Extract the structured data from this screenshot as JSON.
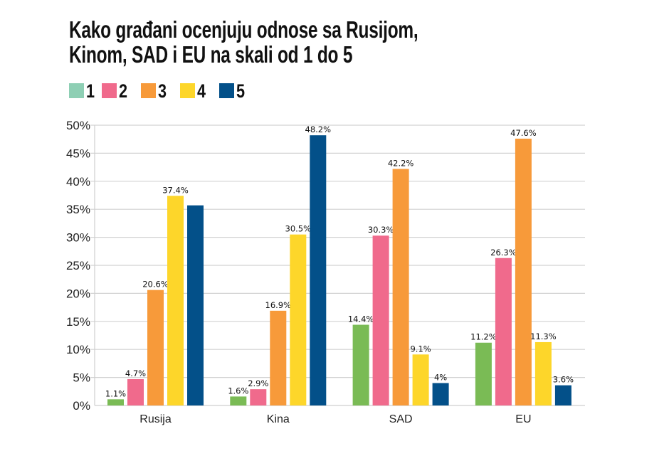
{
  "chart_data": {
    "type": "bar",
    "title_lines": [
      "Kako građani ocenjuju odnose sa Rusijom,",
      "Kinom, SAD i EU na skali od 1 do 5"
    ],
    "categories": [
      "Rusija",
      "Kina",
      "SAD",
      "EU"
    ],
    "series": [
      {
        "name": "1",
        "color": "#7abb55",
        "legend_color": "#8ecfb4",
        "values": [
          1.1,
          1.6,
          14.4,
          11.2
        ],
        "labels": [
          "1.1%",
          "1.6%",
          "14.4%",
          "11.2%"
        ]
      },
      {
        "name": "2",
        "color": "#f06a8c",
        "legend_color": "#f06a8c",
        "values": [
          4.7,
          2.9,
          30.3,
          26.3
        ],
        "labels": [
          "4.7%",
          "2.9%",
          "30.3%",
          "26.3%"
        ]
      },
      {
        "name": "3",
        "color": "#f79a3a",
        "legend_color": "#f79a3a",
        "values": [
          20.6,
          16.9,
          42.2,
          47.6
        ],
        "labels": [
          "20.6%",
          "16.9%",
          "42.2%",
          "47.6%"
        ]
      },
      {
        "name": "4",
        "color": "#fdd62a",
        "legend_color": "#fdd62a",
        "values": [
          37.4,
          30.5,
          9.1,
          11.3
        ],
        "labels": [
          "37.4%",
          "30.5%",
          "9.1%",
          "11.3%"
        ]
      },
      {
        "name": "5",
        "color": "#035089",
        "legend_color": "#035089",
        "values": [
          35.7,
          48.2,
          4.0,
          3.6
        ],
        "labels": [
          "",
          "48.2%",
          "4%",
          "3.6%"
        ]
      }
    ],
    "xlabel": "",
    "ylabel": "",
    "ylim": [
      0,
      50
    ],
    "yticks": [
      0,
      5,
      10,
      15,
      20,
      25,
      30,
      35,
      40,
      45,
      50
    ],
    "ytick_labels": [
      "0%",
      "5%",
      "10%",
      "15%",
      "20%",
      "25%",
      "30%",
      "35%",
      "40%",
      "45%",
      "50%"
    ],
    "grid": true,
    "legend_position": "top-left"
  }
}
